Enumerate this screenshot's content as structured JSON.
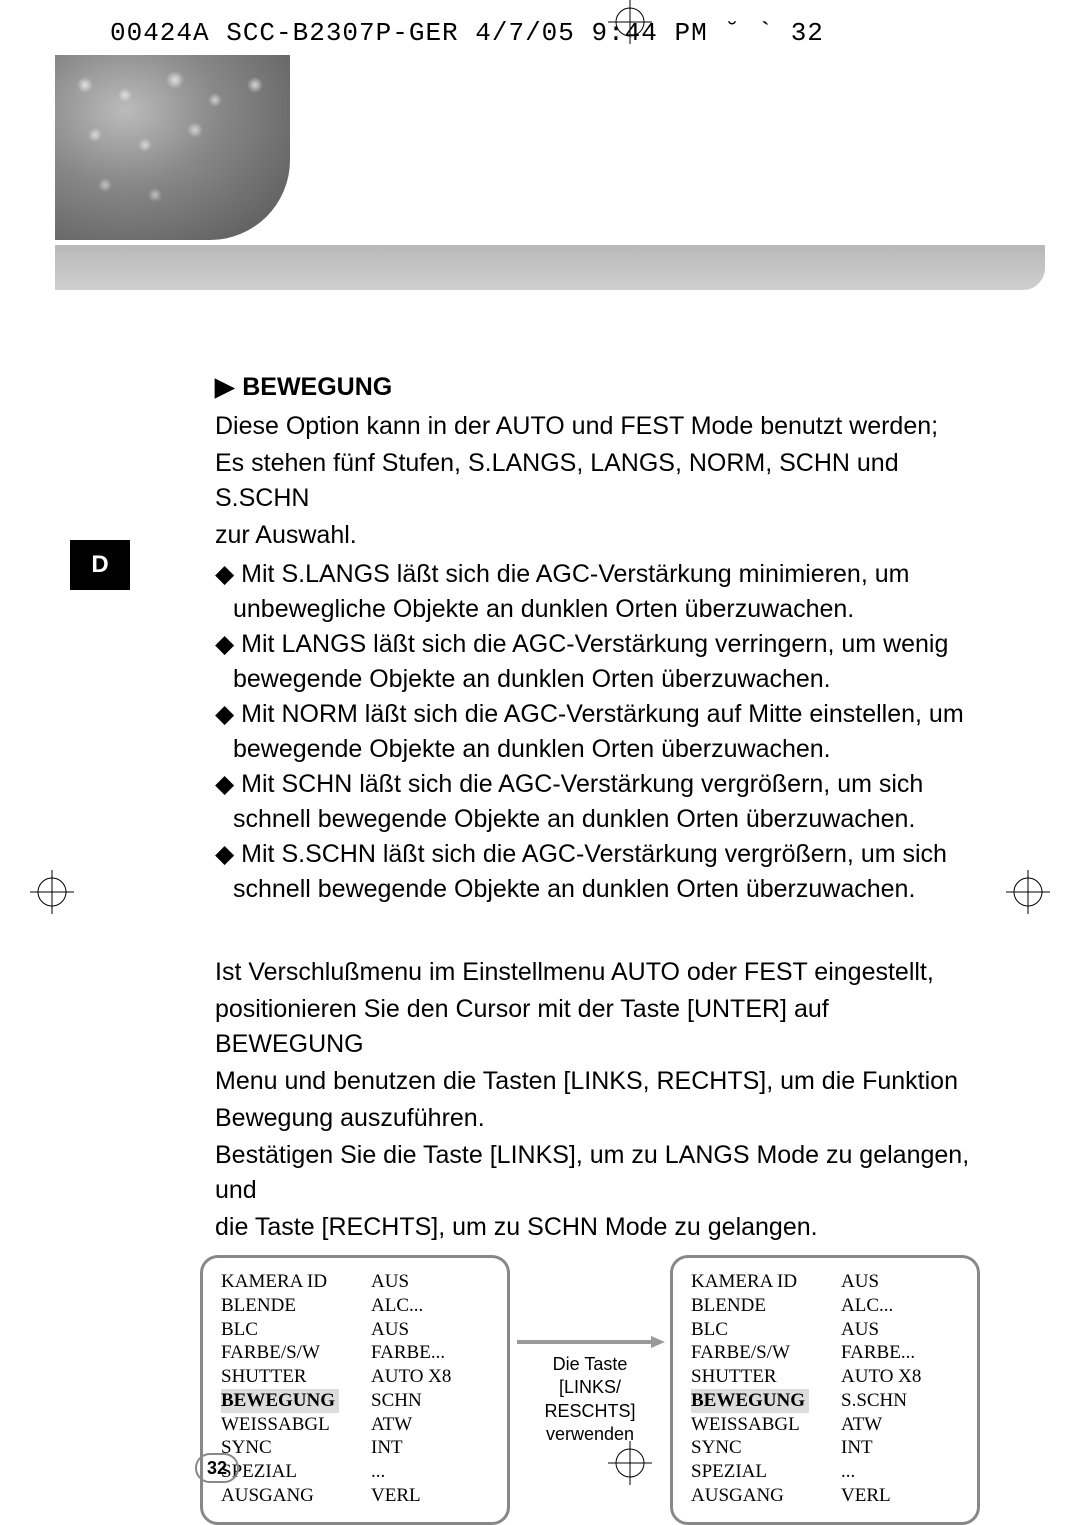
{
  "header": "00424A SCC-B2307P-GER 4/7/05 9:44 PM  ˘  `  32",
  "sidebar_letter": "D",
  "section_title": "BEWEGUNG",
  "intro_lines": [
    "Diese Option kann in der AUTO und FEST Mode benutzt werden;",
    "Es stehen fünf Stufen, S.LANGS, LANGS, NORM, SCHN und S.SCHN",
    "zur Auswahl."
  ],
  "bullets": [
    "Mit S.LANGS läßt sich die AGC-Verstärkung minimieren, um unbewegliche Objekte an dunklen Orten überzuwachen.",
    "Mit LANGS läßt sich die AGC-Verstärkung verringern, um wenig bewegende Objekte an dunklen Orten überzuwachen.",
    "Mit NORM läßt sich die AGC-Verstärkung auf Mitte einstellen, um bewegende Objekte an dunklen Orten überzuwachen.",
    "Mit SCHN läßt sich die AGC-Verstärkung vergrößern, um sich schnell bewegende Objekte an dunklen Orten überzuwachen.",
    "Mit S.SCHN läßt sich die AGC-Verstärkung vergrößern, um sich schnell bewegende Objekte an dunklen Orten überzuwachen."
  ],
  "para2_lines": [
    "Ist Verschlußmenu im Einstellmenu AUTO oder FEST eingestellt,",
    "positionieren Sie den Cursor mit der Taste [UNTER] auf BEWEGUNG",
    "Menu und benutzen die Tasten [LINKS, RECHTS], um die Funktion",
    "Bewegung auszuführen.",
    "Bestätigen Sie die Taste [LINKS], um zu LANGS Mode zu gelangen, und",
    "die Taste [RECHTS], um zu SCHN Mode zu gelangen."
  ],
  "menu_labels": [
    "KAMERA ID",
    "BLENDE",
    "BLC",
    "FARBE/S/W",
    "SHUTTER",
    "BEWEGUNG",
    "WEISSABGL",
    "SYNC",
    "SPEZIAL",
    "AUSGANG"
  ],
  "menu_left_values": [
    "AUS",
    "ALC...",
    "AUS",
    "FARBE...",
    "AUTO X8",
    "SCHN",
    "ATW",
    "INT",
    "...",
    "VERL"
  ],
  "menu_right_values": [
    "AUS",
    "ALC...",
    "AUS",
    "FARBE...",
    "AUTO X8",
    "S.SCHN",
    "ATW",
    "INT",
    "...",
    "VERL"
  ],
  "menu_highlight_index": 5,
  "arrow_caption_lines": [
    "Die Taste",
    "[LINKS/",
    "RESCHTS]",
    "verwenden"
  ],
  "page_number": "32"
}
